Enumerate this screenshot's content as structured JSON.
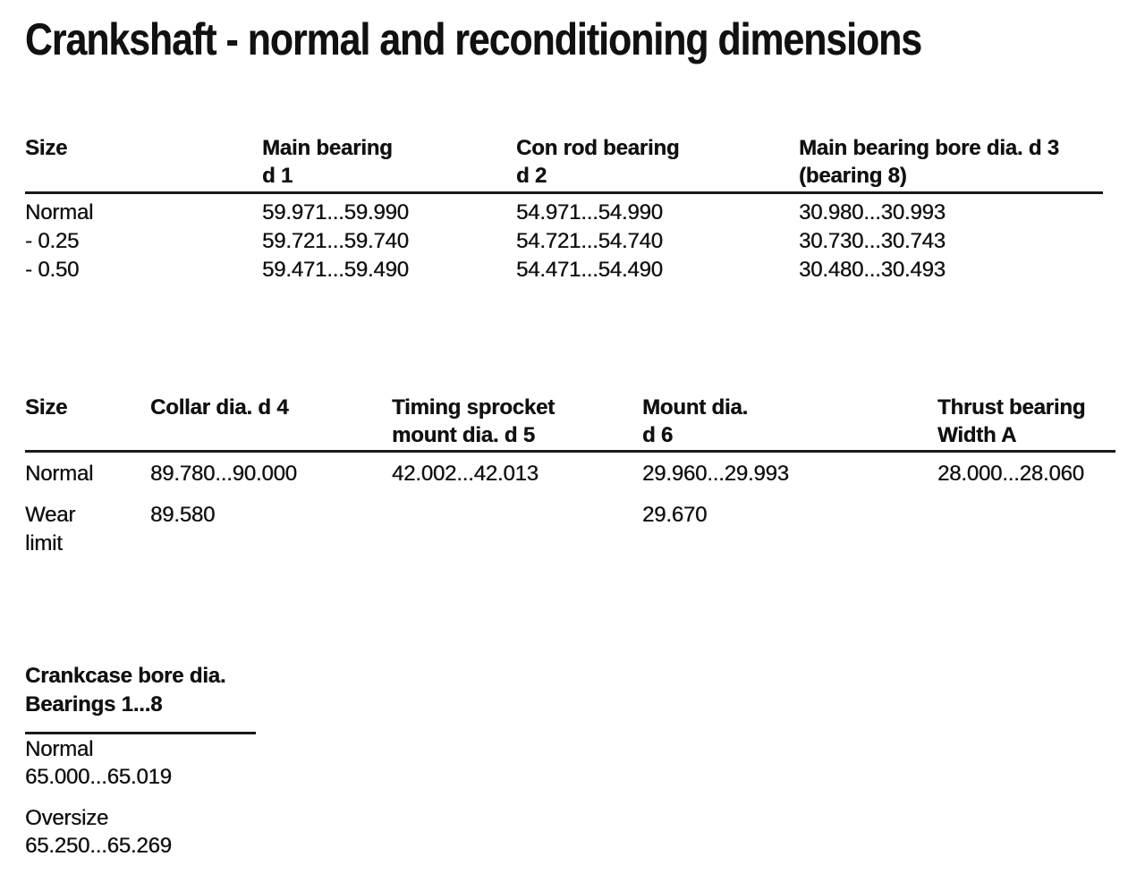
{
  "colors": {
    "text": "#111111",
    "background": "#ffffff",
    "rule": "#1a1a1a"
  },
  "title": "Crankshaft - normal and reconditioning dimensions",
  "table1": {
    "headers": [
      "Size",
      "Main bearing\nd 1",
      "Con rod bearing\nd 2",
      "Main bearing bore dia. d 3\n(bearing 8)"
    ],
    "rows": [
      [
        "Normal",
        "59.971...59.990",
        "54.971...54.990",
        "30.980...30.993"
      ],
      [
        "- 0.25",
        "59.721...59.740",
        "54.721...54.740",
        "30.730...30.743"
      ],
      [
        "- 0.50",
        "59.471...59.490",
        "54.471...54.490",
        "30.480...30.493"
      ]
    ]
  },
  "table2": {
    "headers": [
      "Size",
      "Collar dia. d 4",
      "Timing sprocket\nmount dia. d 5",
      "Mount dia.\nd 6",
      "Thrust bearing\nWidth A"
    ],
    "rows": [
      [
        "Normal",
        "89.780...90.000",
        "42.002...42.013",
        "29.960...29.993",
        "28.000...28.060"
      ],
      [
        "Wear\nlimit",
        "89.580",
        "",
        "29.670",
        ""
      ]
    ]
  },
  "table3": {
    "header": "Crankcase bore dia.\nBearings 1...8",
    "entries": [
      {
        "label": "Normal",
        "value": "65.000...65.019"
      },
      {
        "label": "Oversize",
        "value": "65.250...65.269"
      }
    ]
  }
}
